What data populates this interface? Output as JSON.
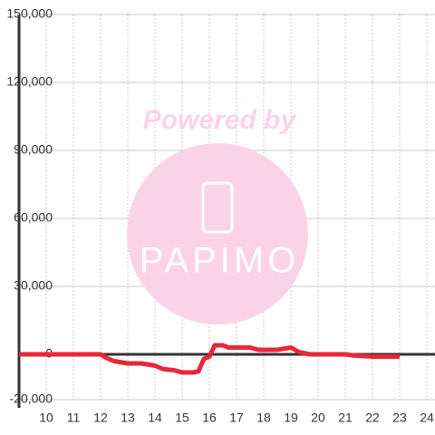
{
  "chart_data": {
    "type": "line",
    "watermark": [
      "Powered by",
      "PAPIMO"
    ],
    "x": [
      9,
      12,
      12.2,
      12.5,
      13,
      13.5,
      14,
      14.3,
      14.7,
      15,
      15.4,
      15.6,
      15.8,
      16,
      16.2,
      16.5,
      16.7,
      17.5,
      17.8,
      18.5,
      19,
      19.3,
      19.7,
      21,
      21.3,
      22,
      23
    ],
    "series": [
      {
        "color": "#e8273a",
        "values": [
          0,
          0,
          -1500,
          -3000,
          -4000,
          -4000,
          -5000,
          -6500,
          -7000,
          -8000,
          -8000,
          -7500,
          -2000,
          -1000,
          4000,
          4000,
          3000,
          3000,
          2000,
          2000,
          3000,
          1000,
          0,
          0,
          -500,
          -1000,
          -1000
        ]
      }
    ],
    "xlim": [
      9,
      24.3
    ],
    "ylim": [
      -20000,
      150000
    ],
    "xticks": [
      10,
      11,
      12,
      13,
      14,
      15,
      16,
      17,
      18,
      19,
      20,
      21,
      22,
      23,
      24
    ],
    "yticks": [
      {
        "value": -20000,
        "label": "-20,000"
      },
      0,
      {
        "value": 30000,
        "label": "30,000"
      },
      {
        "value": 60000,
        "label": "60,000"
      },
      {
        "value": 90000,
        "label": "90,000"
      },
      {
        "value": 120000,
        "label": "120,000"
      },
      {
        "value": 150000,
        "label": "150,000"
      }
    ],
    "grid": true
  }
}
